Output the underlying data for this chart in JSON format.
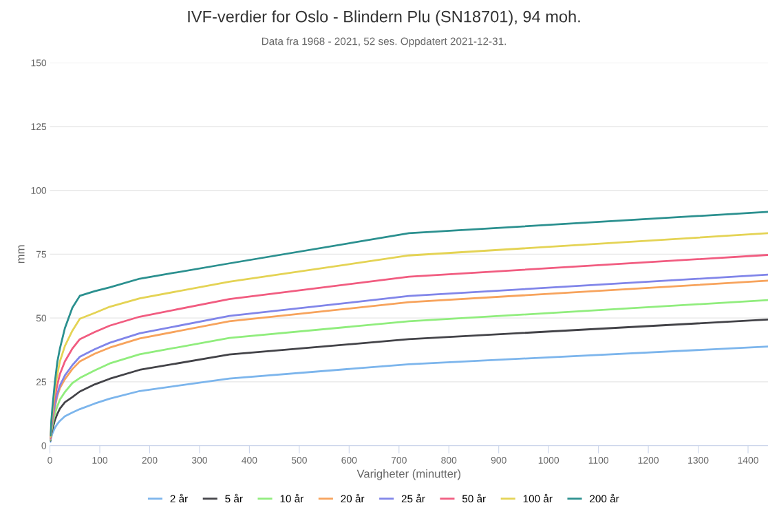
{
  "chart_data": {
    "type": "line",
    "title": "IVF-verdier for Oslo - Blindern Plu (SN18701), 94 moh.",
    "subtitle": "Data fra 1968 - 2021, 52 ses. Oppdatert 2021-12-31.",
    "xlabel": "Varigheter (minutter)",
    "ylabel": "mm",
    "x": [
      1,
      2,
      3,
      5,
      10,
      15,
      20,
      30,
      45,
      60,
      90,
      120,
      180,
      360,
      720,
      1440
    ],
    "series": [
      {
        "name": "2 år",
        "color": "#7cb5ec",
        "values": [
          1.5,
          2.7,
          3.5,
          4.8,
          7,
          8.5,
          9.7,
          11.5,
          13,
          14.3,
          16.5,
          18.4,
          21.4,
          26.3,
          31.9,
          38.8
        ]
      },
      {
        "name": "5 år",
        "color": "#434348",
        "values": [
          2,
          3.5,
          4.8,
          6.5,
          10,
          12.5,
          14.5,
          17,
          19,
          21.2,
          24,
          26.2,
          29.7,
          35.7,
          41.7,
          49.4
        ]
      },
      {
        "name": "10 år",
        "color": "#90ed7d",
        "values": [
          2.3,
          4,
          5.5,
          8,
          12.5,
          15.5,
          18,
          21,
          24.5,
          26.5,
          29.5,
          32.2,
          35.8,
          42.2,
          48.7,
          57
        ]
      },
      {
        "name": "20 år",
        "color": "#f7a35c",
        "values": [
          2.6,
          4.7,
          6.5,
          9.5,
          15,
          19.5,
          22.5,
          26,
          30,
          33,
          36,
          38.4,
          42,
          48.7,
          56.2,
          64.6
        ]
      },
      {
        "name": "25 år",
        "color": "#8085e9",
        "values": [
          2.8,
          5,
          7,
          10,
          16,
          20.5,
          23.5,
          27.5,
          31.5,
          34.8,
          37.8,
          40.3,
          44,
          50.8,
          58.6,
          67
        ]
      },
      {
        "name": "50 år",
        "color": "#f15c80",
        "values": [
          3,
          5.5,
          8,
          11.5,
          19,
          24,
          28,
          33,
          38,
          41.7,
          44.5,
          47,
          50.5,
          57.4,
          66.2,
          74.7
        ]
      },
      {
        "name": "100 år",
        "color": "#e4d354",
        "values": [
          3.5,
          6.5,
          9,
          13,
          22,
          28,
          33,
          39,
          45,
          49.7,
          52,
          54.4,
          57.7,
          64.2,
          74.5,
          83.2
        ]
      },
      {
        "name": "200 år",
        "color": "#2b908f",
        "values": [
          4,
          7,
          10,
          15,
          25,
          33,
          38,
          46,
          54,
          58.7,
          60.5,
          62,
          65.4,
          71.4,
          83.2,
          91.6
        ]
      }
    ],
    "xlim": [
      0,
      1440
    ],
    "xticks": [
      0,
      100,
      200,
      300,
      400,
      500,
      600,
      700,
      800,
      900,
      1000,
      1100,
      1200,
      1300,
      1400
    ],
    "ylim": [
      0,
      150
    ],
    "yticks": [
      0,
      25,
      50,
      75,
      100,
      125,
      150
    ],
    "grid": "y",
    "legend": "bottom",
    "marker": "none",
    "line_style": "solid"
  }
}
